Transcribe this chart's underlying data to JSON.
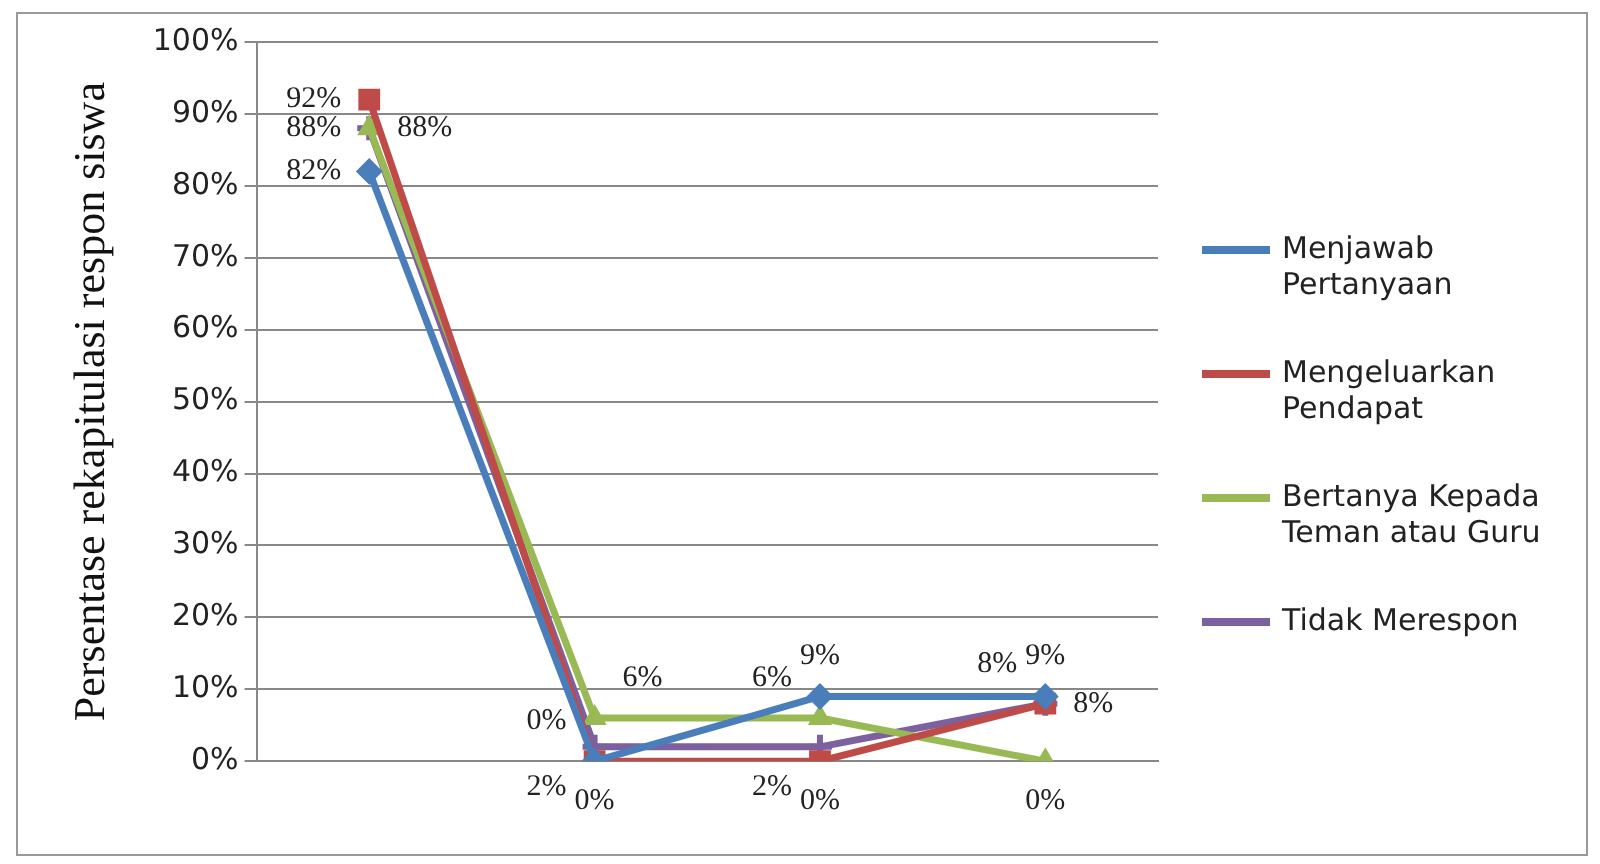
{
  "chart_data": {
    "type": "line",
    "ylabel": "Persentase rekapitulasi respon siswa",
    "categories": [
      null,
      null,
      null,
      null
    ],
    "series": [
      {
        "name": "Menjawab Pertanyaan",
        "color": "#4a7ebb",
        "marker": "diamond",
        "values": [
          82,
          0,
          9,
          9
        ],
        "value_labels": [
          "82%",
          "0%",
          "9%",
          "9%"
        ]
      },
      {
        "name": "Mengeluarkan Pendapat",
        "color": "#be4b48",
        "marker": "square",
        "values": [
          92,
          0,
          0,
          8
        ],
        "value_labels": [
          "92%",
          "0%",
          "0%",
          "8%"
        ]
      },
      {
        "name": "Bertanya Kepada Teman atau Guru",
        "color": "#98b954",
        "marker": "triangle",
        "values": [
          88,
          6,
          6,
          0
        ],
        "value_labels": [
          "88%",
          "6%",
          "6%",
          "0%"
        ]
      },
      {
        "name": "Tidak Merespon",
        "color": "#7d60a0",
        "marker": "cross",
        "values": [
          88,
          2,
          2,
          8
        ],
        "value_labels": [
          "88%",
          "2%",
          "2%",
          "8%"
        ]
      }
    ],
    "ylim": [
      0,
      100
    ],
    "yticks": [
      {
        "value": 0,
        "label": "0%"
      },
      {
        "value": 10,
        "label": "10%"
      },
      {
        "value": 20,
        "label": "20%"
      },
      {
        "value": 30,
        "label": "30%"
      },
      {
        "value": 40,
        "label": "40%"
      },
      {
        "value": 50,
        "label": "50%"
      },
      {
        "value": 60,
        "label": "60%"
      },
      {
        "value": 70,
        "label": "70%"
      },
      {
        "value": 80,
        "label": "80%"
      },
      {
        "value": 90,
        "label": "90%"
      },
      {
        "value": 100,
        "label": "100%"
      }
    ],
    "grid": "y",
    "legend": "right",
    "line_style": "solid"
  }
}
